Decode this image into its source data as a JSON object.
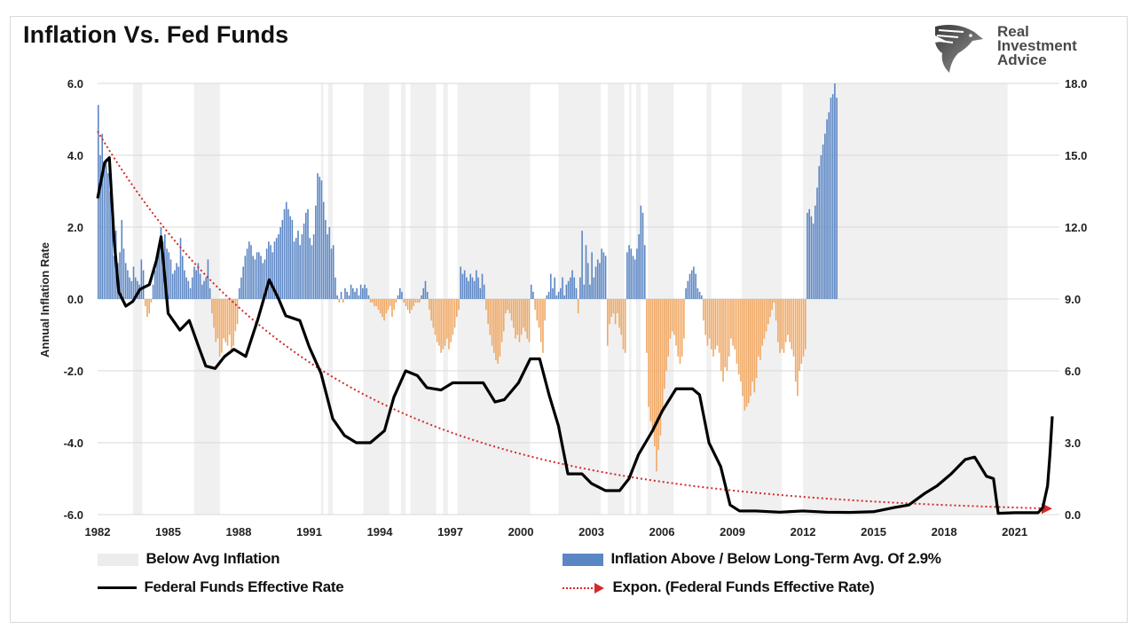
{
  "header": {
    "title": "Inflation Vs. Fed Funds",
    "logo_lines": [
      "Real",
      "Investment",
      "Advice"
    ]
  },
  "chart_data": {
    "type": "bar+line",
    "title": "Inflation Vs. Fed Funds",
    "ylabel": "Annual Inflation Rate",
    "ylabel_right": "",
    "xlim": [
      1982.0,
      2022.6
    ],
    "ylim": [
      -6.0,
      6.0
    ],
    "ylim_right": [
      0.0,
      18.0
    ],
    "yticks": [
      "6.0",
      "4.0",
      "2.0",
      "0.0",
      "-2.0",
      "-4.0",
      "-6.0"
    ],
    "yticks_right": [
      "18.0",
      "15.0",
      "12.0",
      "9.0",
      "6.0",
      "3.0",
      "0.0"
    ],
    "xticks": [
      "1982",
      "1985",
      "1988",
      "1991",
      "1994",
      "1997",
      "2000",
      "2003",
      "2006",
      "2009",
      "2012",
      "2015",
      "2018",
      "2021"
    ],
    "grid": true,
    "colors": {
      "above": "#5b86c4",
      "below": "#f0a864",
      "shade": "#f0f0f0",
      "fed": "#000000",
      "trend": "#d42a2a"
    },
    "legend": [
      {
        "label": "Below Avg Inflation",
        "kind": "shade"
      },
      {
        "label": "Inflation Above / Below Long-Term Avg. Of 2.9%",
        "kind": "bar"
      },
      {
        "label": "Federal Funds Effective Rate",
        "kind": "line"
      },
      {
        "label": "Expon. (Federal Funds Effective Rate)",
        "kind": "dotted-arrow"
      }
    ],
    "shaded_periods": [
      [
        1983.5,
        1983.9
      ],
      [
        1986.1,
        1987.2
      ],
      [
        1991.5,
        1991.6
      ],
      [
        1991.8,
        1992.0
      ],
      [
        1993.3,
        1994.4
      ],
      [
        1994.9,
        1995.1
      ],
      [
        1995.3,
        1996.4
      ],
      [
        1996.7,
        1996.9
      ],
      [
        1997.3,
        2000.4
      ],
      [
        2001.6,
        2003.4
      ],
      [
        2003.7,
        2004.4
      ],
      [
        2004.6,
        2004.7
      ],
      [
        2004.9,
        2005.1
      ],
      [
        2005.4,
        2006.5
      ],
      [
        2007.9,
        2008.1
      ],
      [
        2009.4,
        2011.1
      ],
      [
        2012.0,
        2020.7
      ]
    ],
    "inflation_deviation": {
      "x_start": 1982.0,
      "step": 0.0833,
      "values": [
        5.4,
        4.0,
        4.6,
        3.8,
        3.9,
        3.5,
        3.0,
        2.4,
        1.2,
        1.9,
        1.0,
        1.3,
        2.2,
        1.4,
        1.0,
        0.8,
        0.6,
        0.5,
        0.9,
        0.6,
        0.5,
        0.4,
        1.1,
        0.8,
        -0.2,
        -0.5,
        -0.4,
        -0.1,
        0.4,
        0.8,
        1.2,
        1.4,
        2.0,
        1.6,
        1.8,
        1.4,
        1.3,
        1.1,
        0.7,
        0.8,
        1.0,
        0.9,
        1.7,
        1.2,
        0.8,
        0.6,
        0.5,
        0.3,
        0.6,
        0.9,
        0.8,
        1.0,
        0.7,
        0.4,
        0.5,
        0.6,
        1.1,
        0.3,
        -0.4,
        -0.8,
        -1.2,
        -1.1,
        -1.6,
        -1.5,
        -1.1,
        -1.2,
        -1.3,
        -1.0,
        -1.5,
        -1.3,
        -0.9,
        -0.7,
        0.3,
        0.6,
        0.9,
        1.2,
        1.4,
        1.6,
        1.5,
        1.2,
        1.1,
        1.3,
        1.3,
        1.2,
        1.0,
        1.1,
        1.4,
        1.6,
        1.5,
        1.3,
        1.6,
        1.7,
        1.8,
        2.0,
        2.2,
        2.5,
        2.7,
        2.5,
        2.3,
        2.2,
        1.6,
        1.7,
        1.9,
        1.5,
        1.8,
        2.1,
        2.4,
        2.5,
        1.7,
        1.5,
        1.8,
        2.6,
        3.5,
        3.4,
        3.3,
        2.7,
        2.2,
        1.8,
        2.0,
        1.4,
        1.5,
        0.6,
        0.1,
        -0.1,
        0.2,
        -0.1,
        0.3,
        0.2,
        0.1,
        0.4,
        0.3,
        0.2,
        0.3,
        0.1,
        0.4,
        0.3,
        0.4,
        0.3,
        0.1,
        -0.1,
        -0.1,
        -0.2,
        -0.2,
        -0.3,
        -0.4,
        -0.5,
        -0.6,
        -0.4,
        -0.3,
        -0.2,
        -0.5,
        -0.3,
        -0.1,
        0.1,
        0.3,
        0.2,
        -0.1,
        -0.2,
        -0.3,
        -0.4,
        -0.3,
        -0.2,
        -0.1,
        -0.1,
        -0.1,
        0.1,
        0.3,
        0.5,
        0.2,
        -0.3,
        -0.6,
        -0.8,
        -1.0,
        -1.2,
        -1.3,
        -1.5,
        -1.4,
        -1.3,
        -1.1,
        -1.4,
        -1.2,
        -1.0,
        -0.8,
        -0.5,
        -0.3,
        0.9,
        0.7,
        0.8,
        0.6,
        0.5,
        0.7,
        0.6,
        0.5,
        0.8,
        0.6,
        0.3,
        0.7,
        0.4,
        -0.3,
        -0.7,
        -1.0,
        -1.3,
        -1.5,
        -1.7,
        -1.8,
        -1.6,
        -1.2,
        -0.9,
        -0.4,
        -0.3,
        -0.4,
        -0.6,
        -0.8,
        -1.1,
        -1.0,
        -1.2,
        -1.0,
        -0.8,
        -0.9,
        -1.1,
        -1.2,
        0.4,
        0.2,
        -0.3,
        -0.6,
        -0.8,
        -1.2,
        -1.5,
        -0.6,
        0.1,
        0.2,
        0.7,
        0.3,
        0.6,
        0.1,
        0.2,
        0.3,
        0.6,
        0.1,
        0.4,
        0.5,
        0.6,
        0.8,
        0.6,
        0.3,
        -0.4,
        0.6,
        1.9,
        0.4,
        1.5,
        1.0,
        0.4,
        1.3,
        0.6,
        0.9,
        1.1,
        1.0,
        1.4,
        1.3,
        1.2,
        -1.3,
        -0.7,
        -0.5,
        -0.4,
        -0.7,
        -0.4,
        -0.8,
        -1.0,
        -1.4,
        -1.5,
        1.3,
        1.5,
        1.4,
        1.2,
        1.1,
        1.4,
        1.8,
        2.6,
        2.4,
        1.5,
        -1.5,
        -3.0,
        -3.4,
        -3.6,
        -4.1,
        -4.8,
        -4.2,
        -3.8,
        -3.2,
        -2.5,
        -2.0,
        -1.6,
        -1.1,
        -0.9,
        -1.0,
        -1.3,
        -1.6,
        -1.8,
        -1.6,
        -1.1,
        0.3,
        0.5,
        0.7,
        0.8,
        0.9,
        0.7,
        0.3,
        0.2,
        0.1,
        -0.6,
        -1.0,
        -1.3,
        -1.1,
        -1.4,
        -1.6,
        -1.4,
        -1.3,
        -1.5,
        -2.0,
        -2.3,
        -1.9,
        -2.0,
        -1.6,
        -1.1,
        -1.3,
        -1.4,
        -1.8,
        -2.1,
        -2.3,
        -2.7,
        -3.1,
        -3.0,
        -2.9,
        -2.7,
        -2.3,
        -2.6,
        -2.2,
        -1.6,
        -1.7,
        -1.3,
        -1.1,
        -0.9,
        -0.7,
        -0.5,
        -0.3,
        -0.1,
        -0.6,
        -1.2,
        -1.5,
        -1.4,
        -1.5,
        -1.2,
        -1.0,
        -1.2,
        -1.4,
        -1.6,
        -2.3,
        -2.7,
        -2.0,
        -1.8,
        -1.6,
        -1.4,
        2.4,
        2.5,
        2.3,
        2.1,
        2.6,
        3.1,
        3.7,
        4.0,
        4.3,
        4.6,
        5.0,
        5.2,
        5.6,
        5.7,
        6.0,
        5.6
      ]
    },
    "fed_funds_rate": {
      "points": [
        [
          1982.0,
          13.2
        ],
        [
          1982.3,
          14.7
        ],
        [
          1982.5,
          14.9
        ],
        [
          1982.7,
          11.5
        ],
        [
          1982.9,
          9.3
        ],
        [
          1983.2,
          8.7
        ],
        [
          1983.5,
          8.9
        ],
        [
          1983.8,
          9.4
        ],
        [
          1984.2,
          9.6
        ],
        [
          1984.5,
          10.6
        ],
        [
          1984.7,
          11.6
        ],
        [
          1985.0,
          8.4
        ],
        [
          1985.5,
          7.7
        ],
        [
          1985.9,
          8.1
        ],
        [
          1986.3,
          7.0
        ],
        [
          1986.6,
          6.2
        ],
        [
          1987.0,
          6.1
        ],
        [
          1987.4,
          6.6
        ],
        [
          1987.8,
          6.9
        ],
        [
          1988.3,
          6.6
        ],
        [
          1988.8,
          8.1
        ],
        [
          1989.3,
          9.8
        ],
        [
          1989.7,
          9.0
        ],
        [
          1990.0,
          8.3
        ],
        [
          1990.6,
          8.1
        ],
        [
          1991.0,
          7.0
        ],
        [
          1991.5,
          5.9
        ],
        [
          1992.0,
          4.0
        ],
        [
          1992.5,
          3.3
        ],
        [
          1993.0,
          3.0
        ],
        [
          1993.6,
          3.0
        ],
        [
          1994.2,
          3.5
        ],
        [
          1994.6,
          4.9
        ],
        [
          1995.1,
          6.0
        ],
        [
          1995.6,
          5.8
        ],
        [
          1996.0,
          5.3
        ],
        [
          1996.6,
          5.2
        ],
        [
          1997.1,
          5.5
        ],
        [
          1997.8,
          5.5
        ],
        [
          1998.4,
          5.5
        ],
        [
          1998.9,
          4.7
        ],
        [
          1999.3,
          4.8
        ],
        [
          1999.9,
          5.5
        ],
        [
          2000.4,
          6.5
        ],
        [
          2000.8,
          6.5
        ],
        [
          2001.2,
          5.0
        ],
        [
          2001.6,
          3.7
        ],
        [
          2002.0,
          1.7
        ],
        [
          2002.6,
          1.7
        ],
        [
          2003.0,
          1.3
        ],
        [
          2003.6,
          1.0
        ],
        [
          2004.2,
          1.0
        ],
        [
          2004.6,
          1.5
        ],
        [
          2005.0,
          2.5
        ],
        [
          2005.6,
          3.5
        ],
        [
          2006.0,
          4.3
        ],
        [
          2006.6,
          5.25
        ],
        [
          2007.3,
          5.25
        ],
        [
          2007.6,
          5.0
        ],
        [
          2008.0,
          3.0
        ],
        [
          2008.5,
          2.0
        ],
        [
          2008.9,
          0.4
        ],
        [
          2009.3,
          0.15
        ],
        [
          2010.0,
          0.15
        ],
        [
          2011.0,
          0.1
        ],
        [
          2012.0,
          0.15
        ],
        [
          2013.0,
          0.1
        ],
        [
          2014.0,
          0.09
        ],
        [
          2015.0,
          0.12
        ],
        [
          2015.9,
          0.3
        ],
        [
          2016.5,
          0.4
        ],
        [
          2017.2,
          0.9
        ],
        [
          2017.7,
          1.2
        ],
        [
          2018.3,
          1.7
        ],
        [
          2018.9,
          2.3
        ],
        [
          2019.3,
          2.4
        ],
        [
          2019.8,
          1.6
        ],
        [
          2020.1,
          1.5
        ],
        [
          2020.3,
          0.05
        ],
        [
          2021.0,
          0.08
        ],
        [
          2022.0,
          0.08
        ],
        [
          2022.2,
          0.3
        ],
        [
          2022.4,
          1.2
        ],
        [
          2022.5,
          2.5
        ],
        [
          2022.6,
          4.1
        ]
      ]
    },
    "exponential_trend": {
      "start": [
        1982.0,
        16.0
      ],
      "end": [
        2022.6,
        0.25
      ]
    }
  }
}
